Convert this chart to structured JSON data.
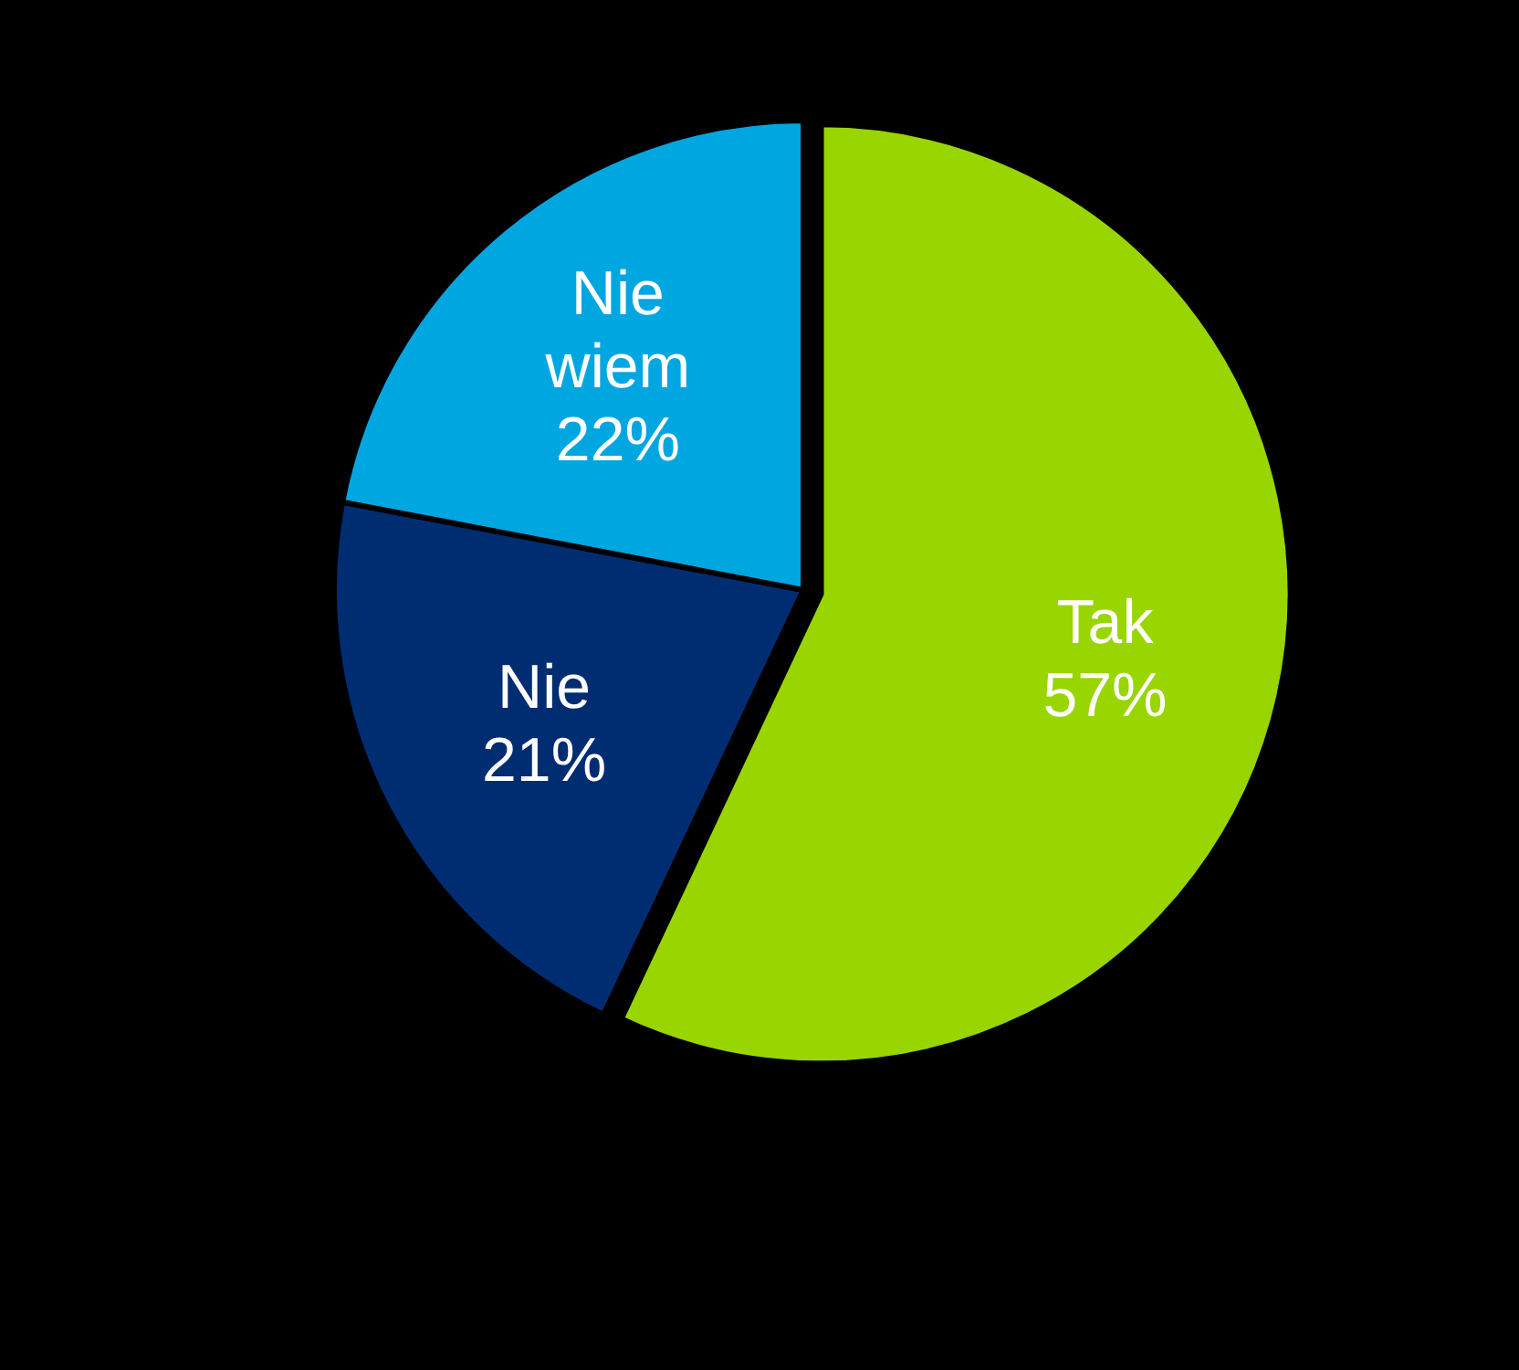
{
  "chart_data": {
    "type": "pie",
    "categories": [
      "Tak",
      "Nie",
      "Nie wiem"
    ],
    "values": [
      57,
      21,
      22
    ],
    "colors": [
      "#99d500",
      "#002d72",
      "#00a6e0"
    ],
    "value_labels": [
      "57%",
      "21%",
      "22%"
    ]
  }
}
